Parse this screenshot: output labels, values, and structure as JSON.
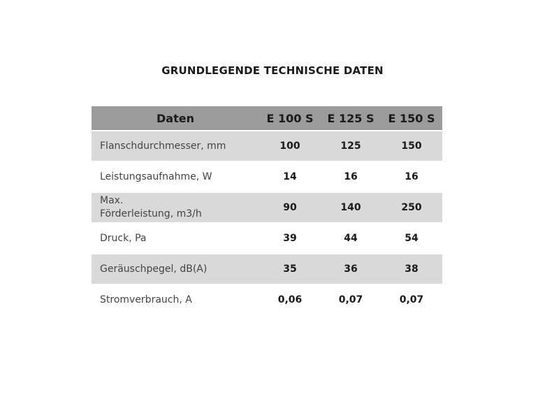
{
  "title": "GRUNDLEGENDE TECHNISCHE DATEN",
  "table": {
    "headers": [
      "Daten",
      "E 100 S",
      "E 125 S",
      "E 150 S"
    ],
    "rows": [
      {
        "label": "Flanschdurchmesser, mm",
        "values": [
          "100",
          "125",
          "150"
        ]
      },
      {
        "label": "Leistungsaufnahme, W",
        "values": [
          "14",
          "16",
          "16"
        ]
      },
      {
        "label_line1": "Max.",
        "label_line2": "Förderleistung, m3/h",
        "values": [
          "90",
          "140",
          "250"
        ]
      },
      {
        "label": "Druck, Pa",
        "values": [
          "39",
          "44",
          "54"
        ]
      },
      {
        "label": "Geräuschpegel, dB(A)",
        "values": [
          "35",
          "36",
          "38"
        ]
      },
      {
        "label": "Stromverbrauch, A",
        "values": [
          "0,06",
          "0,07",
          "0,07"
        ]
      }
    ]
  },
  "colors": {
    "header_bg": "#9b9b9b",
    "shaded_row_bg": "#d9d9d9"
  }
}
